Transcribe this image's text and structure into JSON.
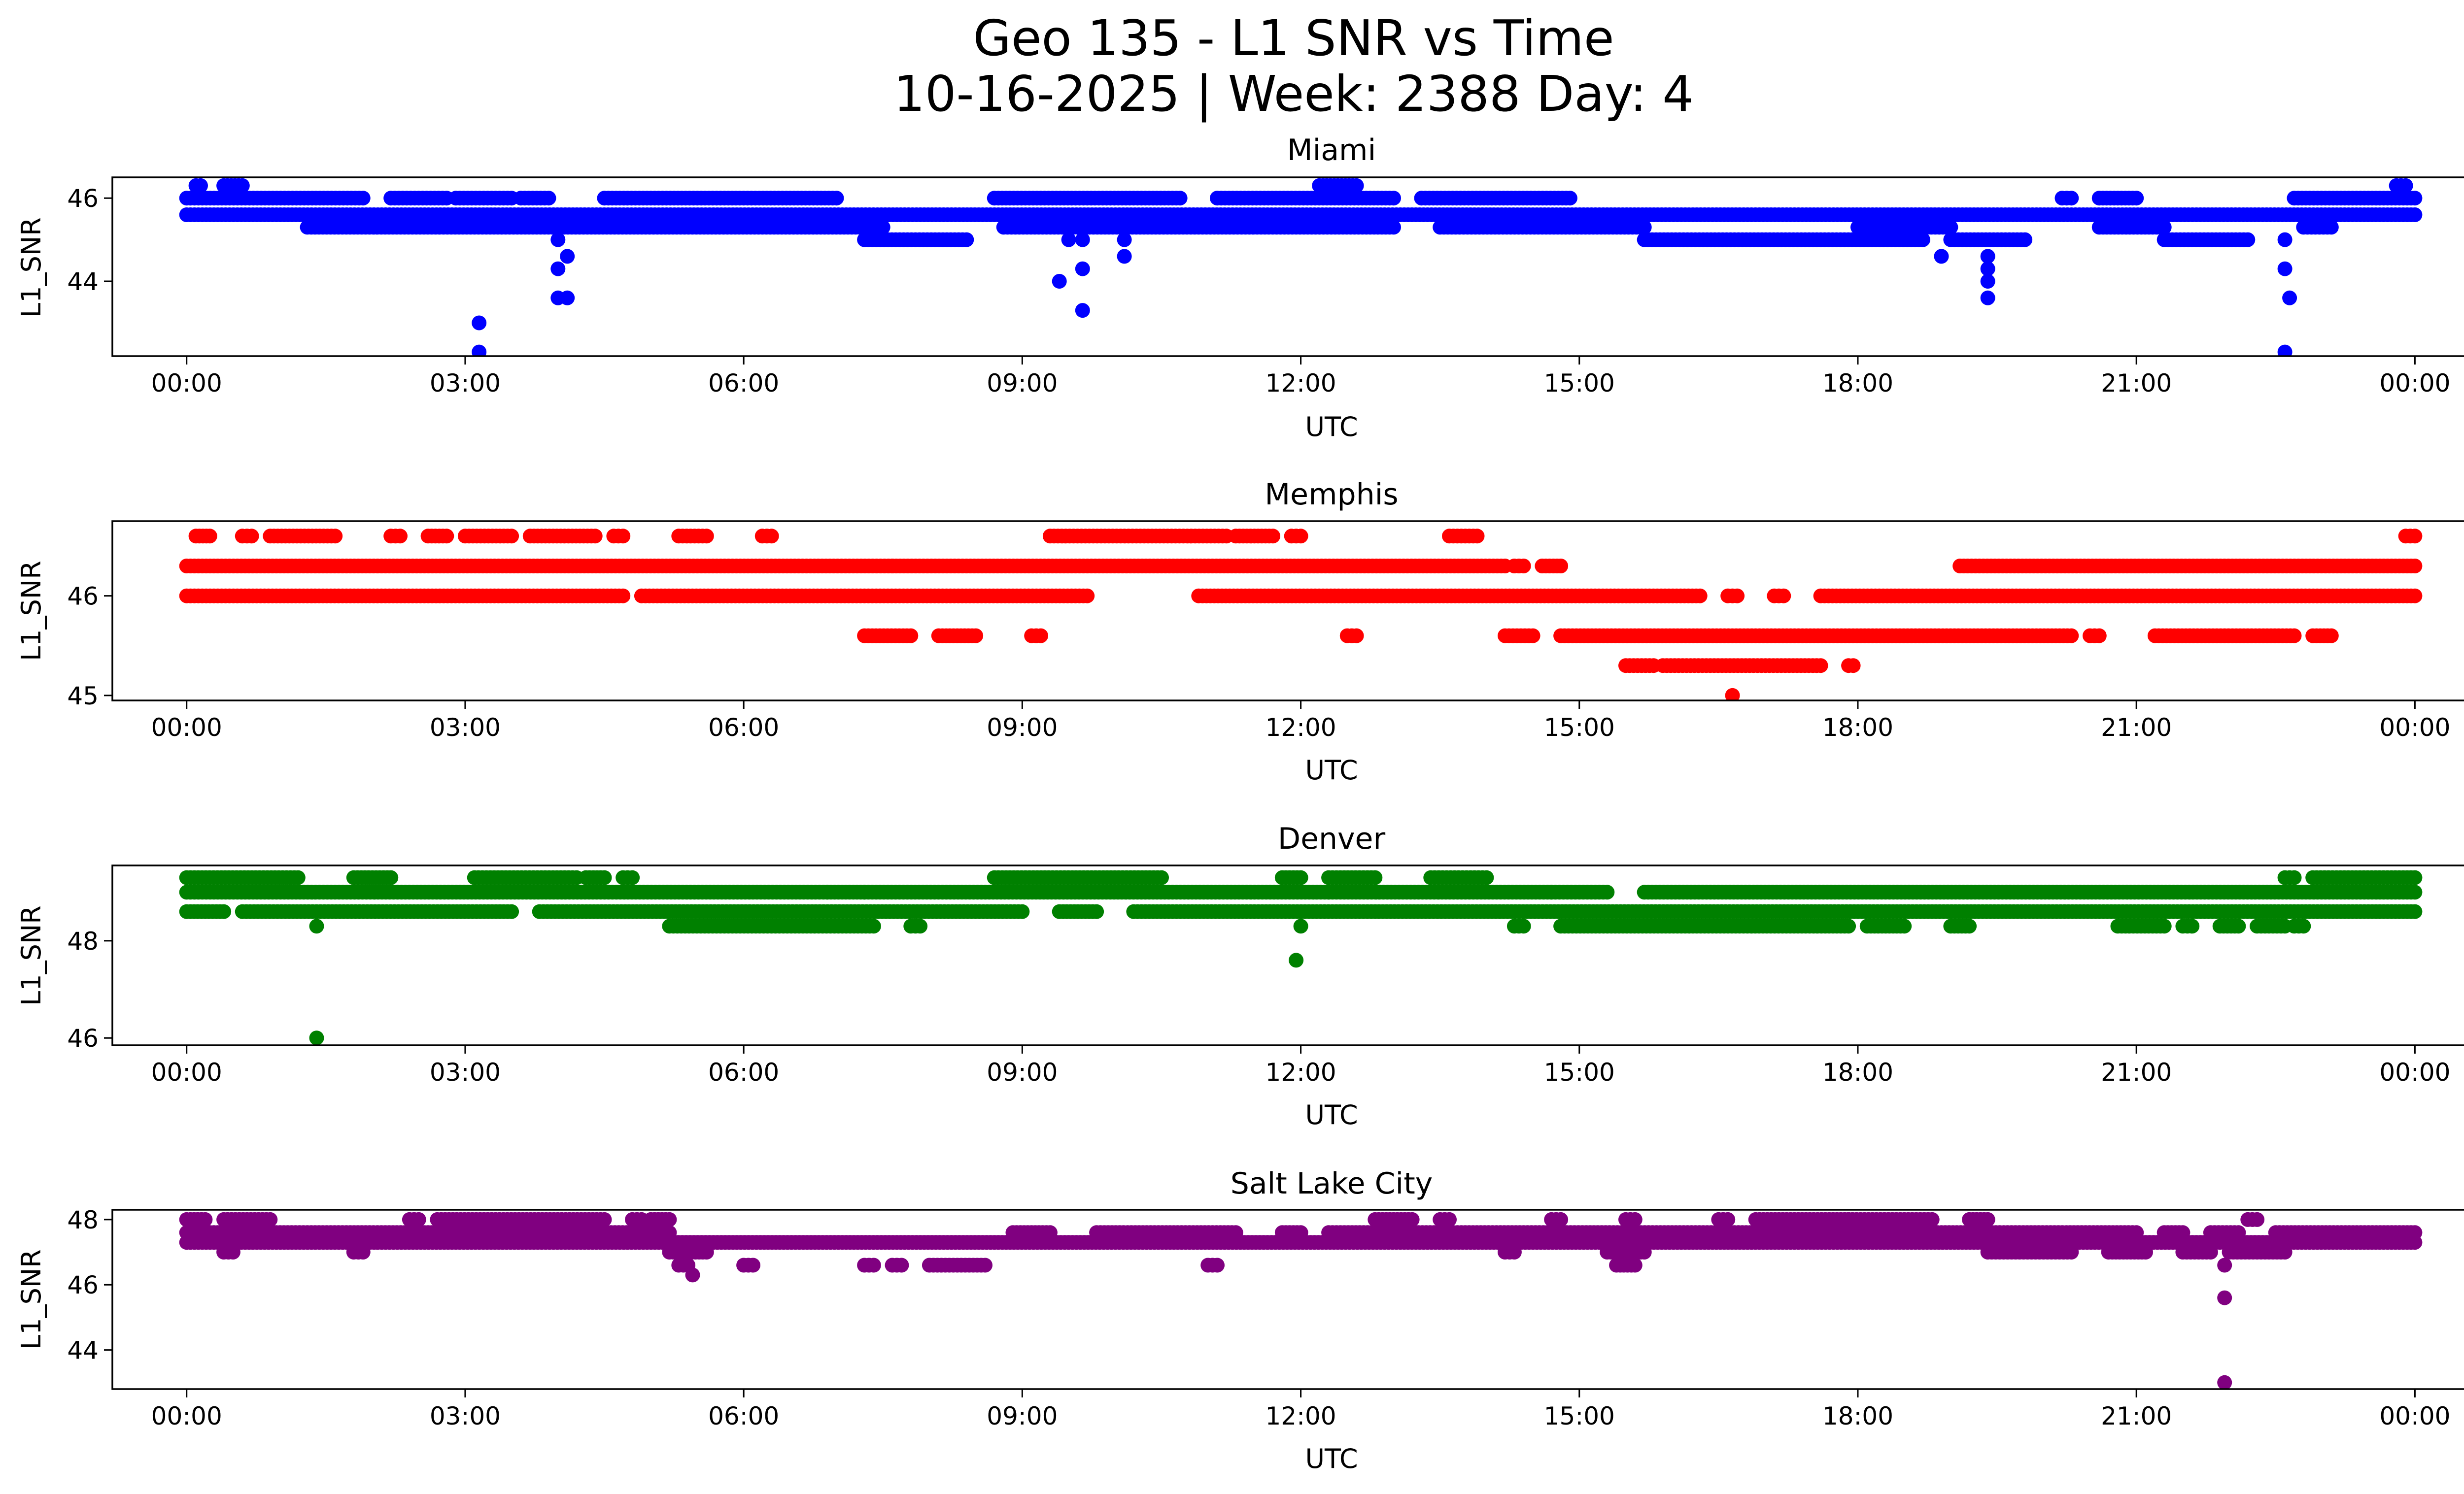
{
  "figure": {
    "title_line1": "Geo 135 - L1 SNR vs Time",
    "title_line2": "10-16-2025 | Week: 2388 Day: 4"
  },
  "chart_data": [
    {
      "type": "scatter",
      "title": "Miami",
      "xlabel": "UTC",
      "ylabel": "L1_SNR",
      "color": "#0000ff",
      "xlim": [
        -0.8,
        25.5
      ],
      "ylim": [
        42.2,
        46.5
      ],
      "xticks": [
        "00:00",
        "03:00",
        "06:00",
        "09:00",
        "12:00",
        "15:00",
        "18:00",
        "21:00",
        "00:00"
      ],
      "yticks": [
        44,
        46
      ],
      "bands": [
        {
          "y": 45.6,
          "ranges": [
            [
              0,
              24
            ]
          ]
        },
        {
          "y": 46.0,
          "ranges": [
            [
              0,
              1.9
            ],
            [
              2.2,
              2.8
            ],
            [
              2.9,
              3.5
            ],
            [
              3.6,
              3.9
            ],
            [
              4.5,
              7.0
            ],
            [
              8.7,
              10.7
            ],
            [
              11.1,
              13.0
            ],
            [
              13.3,
              14.9
            ],
            [
              20.2,
              20.3
            ],
            [
              20.6,
              21.0
            ],
            [
              22.7,
              24
            ]
          ]
        },
        {
          "y": 46.3,
          "ranges": [
            [
              0.1,
              0.15
            ],
            [
              0.4,
              0.6
            ],
            [
              12.2,
              12.6
            ],
            [
              23.8,
              23.9
            ]
          ]
        },
        {
          "y": 45.3,
          "ranges": [
            [
              1.3,
              7.5
            ],
            [
              8.8,
              13.0
            ],
            [
              13.5,
              15.7
            ],
            [
              18.0,
              19.0
            ],
            [
              20.6,
              21.3
            ],
            [
              22.8,
              23.1
            ]
          ]
        },
        {
          "y": 45.0,
          "ranges": [
            [
              7.3,
              8.4
            ],
            [
              15.7,
              18.7
            ],
            [
              19.0,
              19.8
            ],
            [
              21.3,
              22.2
            ]
          ]
        }
      ],
      "outliers": [
        {
          "x": 3.15,
          "y": 43.0
        },
        {
          "x": 3.15,
          "y": 42.3
        },
        {
          "x": 4.0,
          "y": 45.0
        },
        {
          "x": 4.0,
          "y": 44.3
        },
        {
          "x": 4.0,
          "y": 43.6
        },
        {
          "x": 4.1,
          "y": 44.6
        },
        {
          "x": 4.1,
          "y": 43.6
        },
        {
          "x": 9.4,
          "y": 44.0
        },
        {
          "x": 9.5,
          "y": 45.0
        },
        {
          "x": 9.65,
          "y": 45.0
        },
        {
          "x": 9.65,
          "y": 44.3
        },
        {
          "x": 9.65,
          "y": 43.3
        },
        {
          "x": 10.1,
          "y": 45.0
        },
        {
          "x": 10.1,
          "y": 44.6
        },
        {
          "x": 18.9,
          "y": 44.6
        },
        {
          "x": 19.4,
          "y": 44.6
        },
        {
          "x": 19.4,
          "y": 44.3
        },
        {
          "x": 19.4,
          "y": 44.0
        },
        {
          "x": 19.4,
          "y": 43.6
        },
        {
          "x": 22.6,
          "y": 45.0
        },
        {
          "x": 22.6,
          "y": 44.3
        },
        {
          "x": 22.65,
          "y": 43.6
        },
        {
          "x": 22.6,
          "y": 42.3
        }
      ]
    },
    {
      "type": "scatter",
      "title": "Memphis",
      "xlabel": "UTC",
      "ylabel": "L1_SNR",
      "color": "#ff0000",
      "xlim": [
        -0.8,
        25.5
      ],
      "ylim": [
        44.95,
        46.75
      ],
      "xticks": [
        "00:00",
        "03:00",
        "06:00",
        "09:00",
        "12:00",
        "15:00",
        "18:00",
        "21:00",
        "00:00"
      ],
      "yticks": [
        45,
        46
      ],
      "bands": [
        {
          "y": 46.3,
          "ranges": [
            [
              0,
              7.6
            ],
            [
              7.6,
              14.2
            ],
            [
              14.3,
              14.4
            ],
            [
              14.6,
              14.8
            ],
            [
              19.1,
              24
            ]
          ]
        },
        {
          "y": 46.0,
          "ranges": [
            [
              0,
              4.7
            ],
            [
              4.9,
              9.7
            ],
            [
              10.9,
              16.3
            ],
            [
              16.6,
              16.7
            ],
            [
              17.1,
              17.2
            ],
            [
              17.6,
              24
            ]
          ]
        },
        {
          "y": 46.6,
          "ranges": [
            [
              0.1,
              0.25
            ],
            [
              0.6,
              0.7
            ],
            [
              0.9,
              1.6
            ],
            [
              2.2,
              2.3
            ],
            [
              2.6,
              2.8
            ],
            [
              3.0,
              3.5
            ],
            [
              3.7,
              4.4
            ],
            [
              4.6,
              4.7
            ],
            [
              5.3,
              5.6
            ],
            [
              6.2,
              6.3
            ],
            [
              9.3,
              11.2
            ],
            [
              11.3,
              11.7
            ],
            [
              11.9,
              12.0
            ],
            [
              13.6,
              13.9
            ],
            [
              23.9,
              24
            ]
          ]
        },
        {
          "y": 45.6,
          "ranges": [
            [
              7.3,
              7.8
            ],
            [
              8.1,
              8.5
            ],
            [
              9.1,
              9.2
            ],
            [
              12.5,
              12.6
            ],
            [
              14.2,
              14.5
            ],
            [
              14.8,
              20.3
            ],
            [
              20.5,
              20.6
            ],
            [
              21.2,
              22.7
            ],
            [
              22.9,
              23.1
            ]
          ]
        },
        {
          "y": 45.3,
          "ranges": [
            [
              15.5,
              15.8
            ],
            [
              15.9,
              17.6
            ],
            [
              17.9,
              17.95
            ]
          ]
        }
      ],
      "outliers": [
        {
          "x": 16.65,
          "y": 45.0
        }
      ]
    },
    {
      "type": "scatter",
      "title": "Denver",
      "xlabel": "UTC",
      "ylabel": "L1_SNR",
      "color": "#008000",
      "xlim": [
        -0.8,
        25.5
      ],
      "ylim": [
        45.85,
        49.55
      ],
      "xticks": [
        "00:00",
        "03:00",
        "06:00",
        "09:00",
        "12:00",
        "15:00",
        "18:00",
        "21:00",
        "00:00"
      ],
      "yticks": [
        46,
        48
      ],
      "bands": [
        {
          "y": 49.0,
          "ranges": [
            [
              0,
              6.9
            ],
            [
              6.9,
              7.3
            ],
            [
              7.3,
              12.3
            ],
            [
              12.3,
              14.7
            ],
            [
              14.7,
              15.3
            ],
            [
              15.7,
              24
            ]
          ]
        },
        {
          "y": 48.6,
          "ranges": [
            [
              0,
              0.4
            ],
            [
              0.6,
              3.5
            ],
            [
              3.8,
              9.0
            ],
            [
              9.4,
              9.8
            ],
            [
              10.2,
              24
            ]
          ]
        },
        {
          "y": 49.3,
          "ranges": [
            [
              0,
              1.2
            ],
            [
              1.8,
              2.2
            ],
            [
              3.1,
              4.2
            ],
            [
              4.3,
              4.5
            ],
            [
              4.7,
              4.8
            ],
            [
              8.7,
              10.5
            ],
            [
              11.8,
              12.0
            ],
            [
              12.3,
              12.8
            ],
            [
              13.4,
              14.0
            ],
            [
              22.6,
              22.7
            ],
            [
              22.9,
              24
            ]
          ]
        },
        {
          "y": 48.3,
          "ranges": [
            [
              5.2,
              7.4
            ],
            [
              7.8,
              7.9
            ],
            [
              14.3,
              14.4
            ],
            [
              14.8,
              17.9
            ],
            [
              18.1,
              18.5
            ],
            [
              19.0,
              19.2
            ],
            [
              20.8,
              21.3
            ],
            [
              21.5,
              21.6
            ],
            [
              21.9,
              22.1
            ],
            [
              22.3,
              22.6
            ],
            [
              22.7,
              22.8
            ]
          ]
        }
      ],
      "outliers": [
        {
          "x": 1.4,
          "y": 48.3
        },
        {
          "x": 1.4,
          "y": 46.0
        },
        {
          "x": 12.0,
          "y": 48.3
        },
        {
          "x": 11.95,
          "y": 47.6
        }
      ]
    },
    {
      "type": "scatter",
      "title": "Salt Lake City",
      "xlabel": "UTC",
      "ylabel": "L1_SNR",
      "color": "#800080",
      "xlim": [
        -0.8,
        25.5
      ],
      "ylim": [
        42.8,
        48.3
      ],
      "xticks": [
        "00:00",
        "03:00",
        "06:00",
        "09:00",
        "12:00",
        "15:00",
        "18:00",
        "21:00",
        "00:00"
      ],
      "yticks": [
        44,
        46,
        48
      ],
      "bands": [
        {
          "y": 47.3,
          "ranges": [
            [
              0,
              24
            ]
          ]
        },
        {
          "y": 47.6,
          "ranges": [
            [
              0,
              5.2
            ],
            [
              8.9,
              9.3
            ],
            [
              9.8,
              11.3
            ],
            [
              11.8,
              12.0
            ],
            [
              12.3,
              21.0
            ],
            [
              21.3,
              21.5
            ],
            [
              21.8,
              22.1
            ],
            [
              22.5,
              24
            ]
          ]
        },
        {
          "y": 48.0,
          "ranges": [
            [
              0,
              0.2
            ],
            [
              0.4,
              0.9
            ],
            [
              2.4,
              2.5
            ],
            [
              2.7,
              4.5
            ],
            [
              4.8,
              4.9
            ],
            [
              5.0,
              5.2
            ],
            [
              12.8,
              13.2
            ],
            [
              13.5,
              13.6
            ],
            [
              14.7,
              14.8
            ],
            [
              15.5,
              15.6
            ],
            [
              16.5,
              16.6
            ],
            [
              16.9,
              17.9
            ],
            [
              17.9,
              18.8
            ],
            [
              19.2,
              19.4
            ],
            [
              22.2,
              22.3
            ]
          ]
        },
        {
          "y": 47.0,
          "ranges": [
            [
              0.4,
              0.5
            ],
            [
              1.8,
              1.9
            ],
            [
              5.2,
              5.6
            ],
            [
              14.2,
              14.3
            ],
            [
              15.3,
              15.7
            ],
            [
              19.4,
              20.3
            ],
            [
              20.7,
              21.1
            ],
            [
              21.5,
              21.8
            ],
            [
              22.0,
              22.6
            ]
          ]
        },
        {
          "y": 46.6,
          "ranges": [
            [
              5.3,
              5.4
            ],
            [
              6.0,
              6.1
            ],
            [
              7.3,
              7.4
            ],
            [
              7.6,
              7.7
            ],
            [
              8.0,
              8.6
            ],
            [
              11.0,
              11.1
            ],
            [
              15.4,
              15.6
            ]
          ]
        }
      ],
      "outliers": [
        {
          "x": 5.45,
          "y": 46.3
        },
        {
          "x": 21.95,
          "y": 46.6
        },
        {
          "x": 21.95,
          "y": 45.6
        },
        {
          "x": 21.95,
          "y": 43.0
        }
      ]
    }
  ]
}
